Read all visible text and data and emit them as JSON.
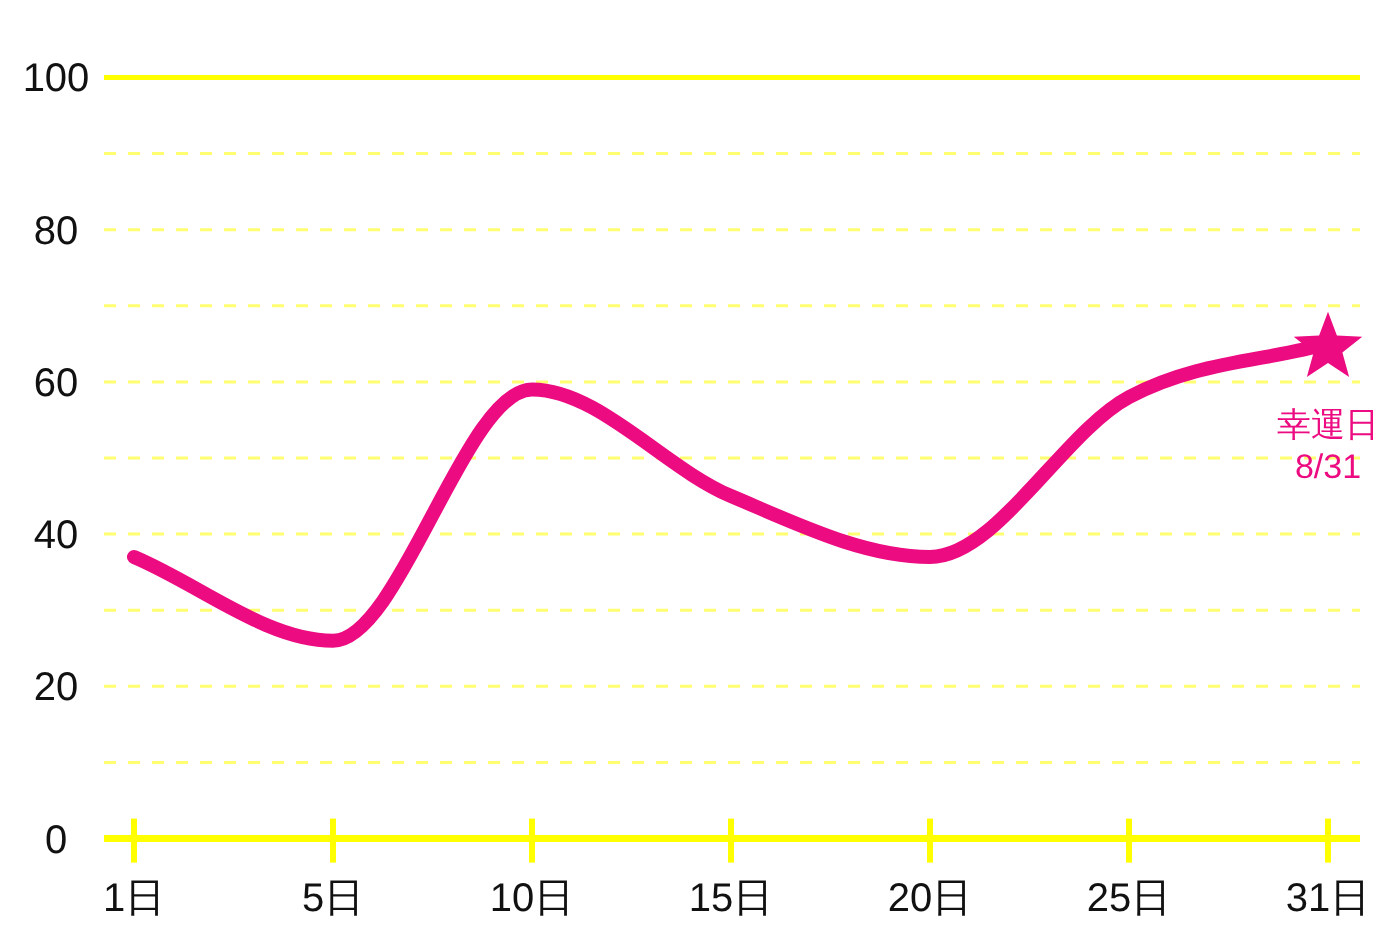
{
  "chart_data": {
    "type": "line",
    "categories": [
      "1日",
      "5日",
      "10日",
      "15日",
      "20日",
      "25日",
      "31日"
    ],
    "series": [
      {
        "type": "line",
        "color": "#ec0b80",
        "values": [
          37,
          26,
          59,
          45,
          37,
          58,
          65
        ],
        "marker": "none",
        "line_style": "solid"
      },
      {
        "type": "scatter",
        "color": "#ec0b80",
        "values": [
          null,
          null,
          null,
          null,
          null,
          null,
          65
        ],
        "marker": "star"
      }
    ],
    "ylim": [
      0,
      100
    ],
    "yticks": [
      0,
      {
        "value": 10,
        "label": null
      },
      20,
      {
        "value": 30,
        "label": null
      },
      40,
      {
        "value": 50,
        "label": null
      },
      60,
      {
        "value": 70,
        "label": null
      },
      80,
      {
        "value": 90,
        "label": null
      },
      100
    ],
    "grid": "y",
    "annotations": [
      {
        "text": "幸運日\n8/31",
        "x": "31日",
        "y": 65
      }
    ]
  }
}
